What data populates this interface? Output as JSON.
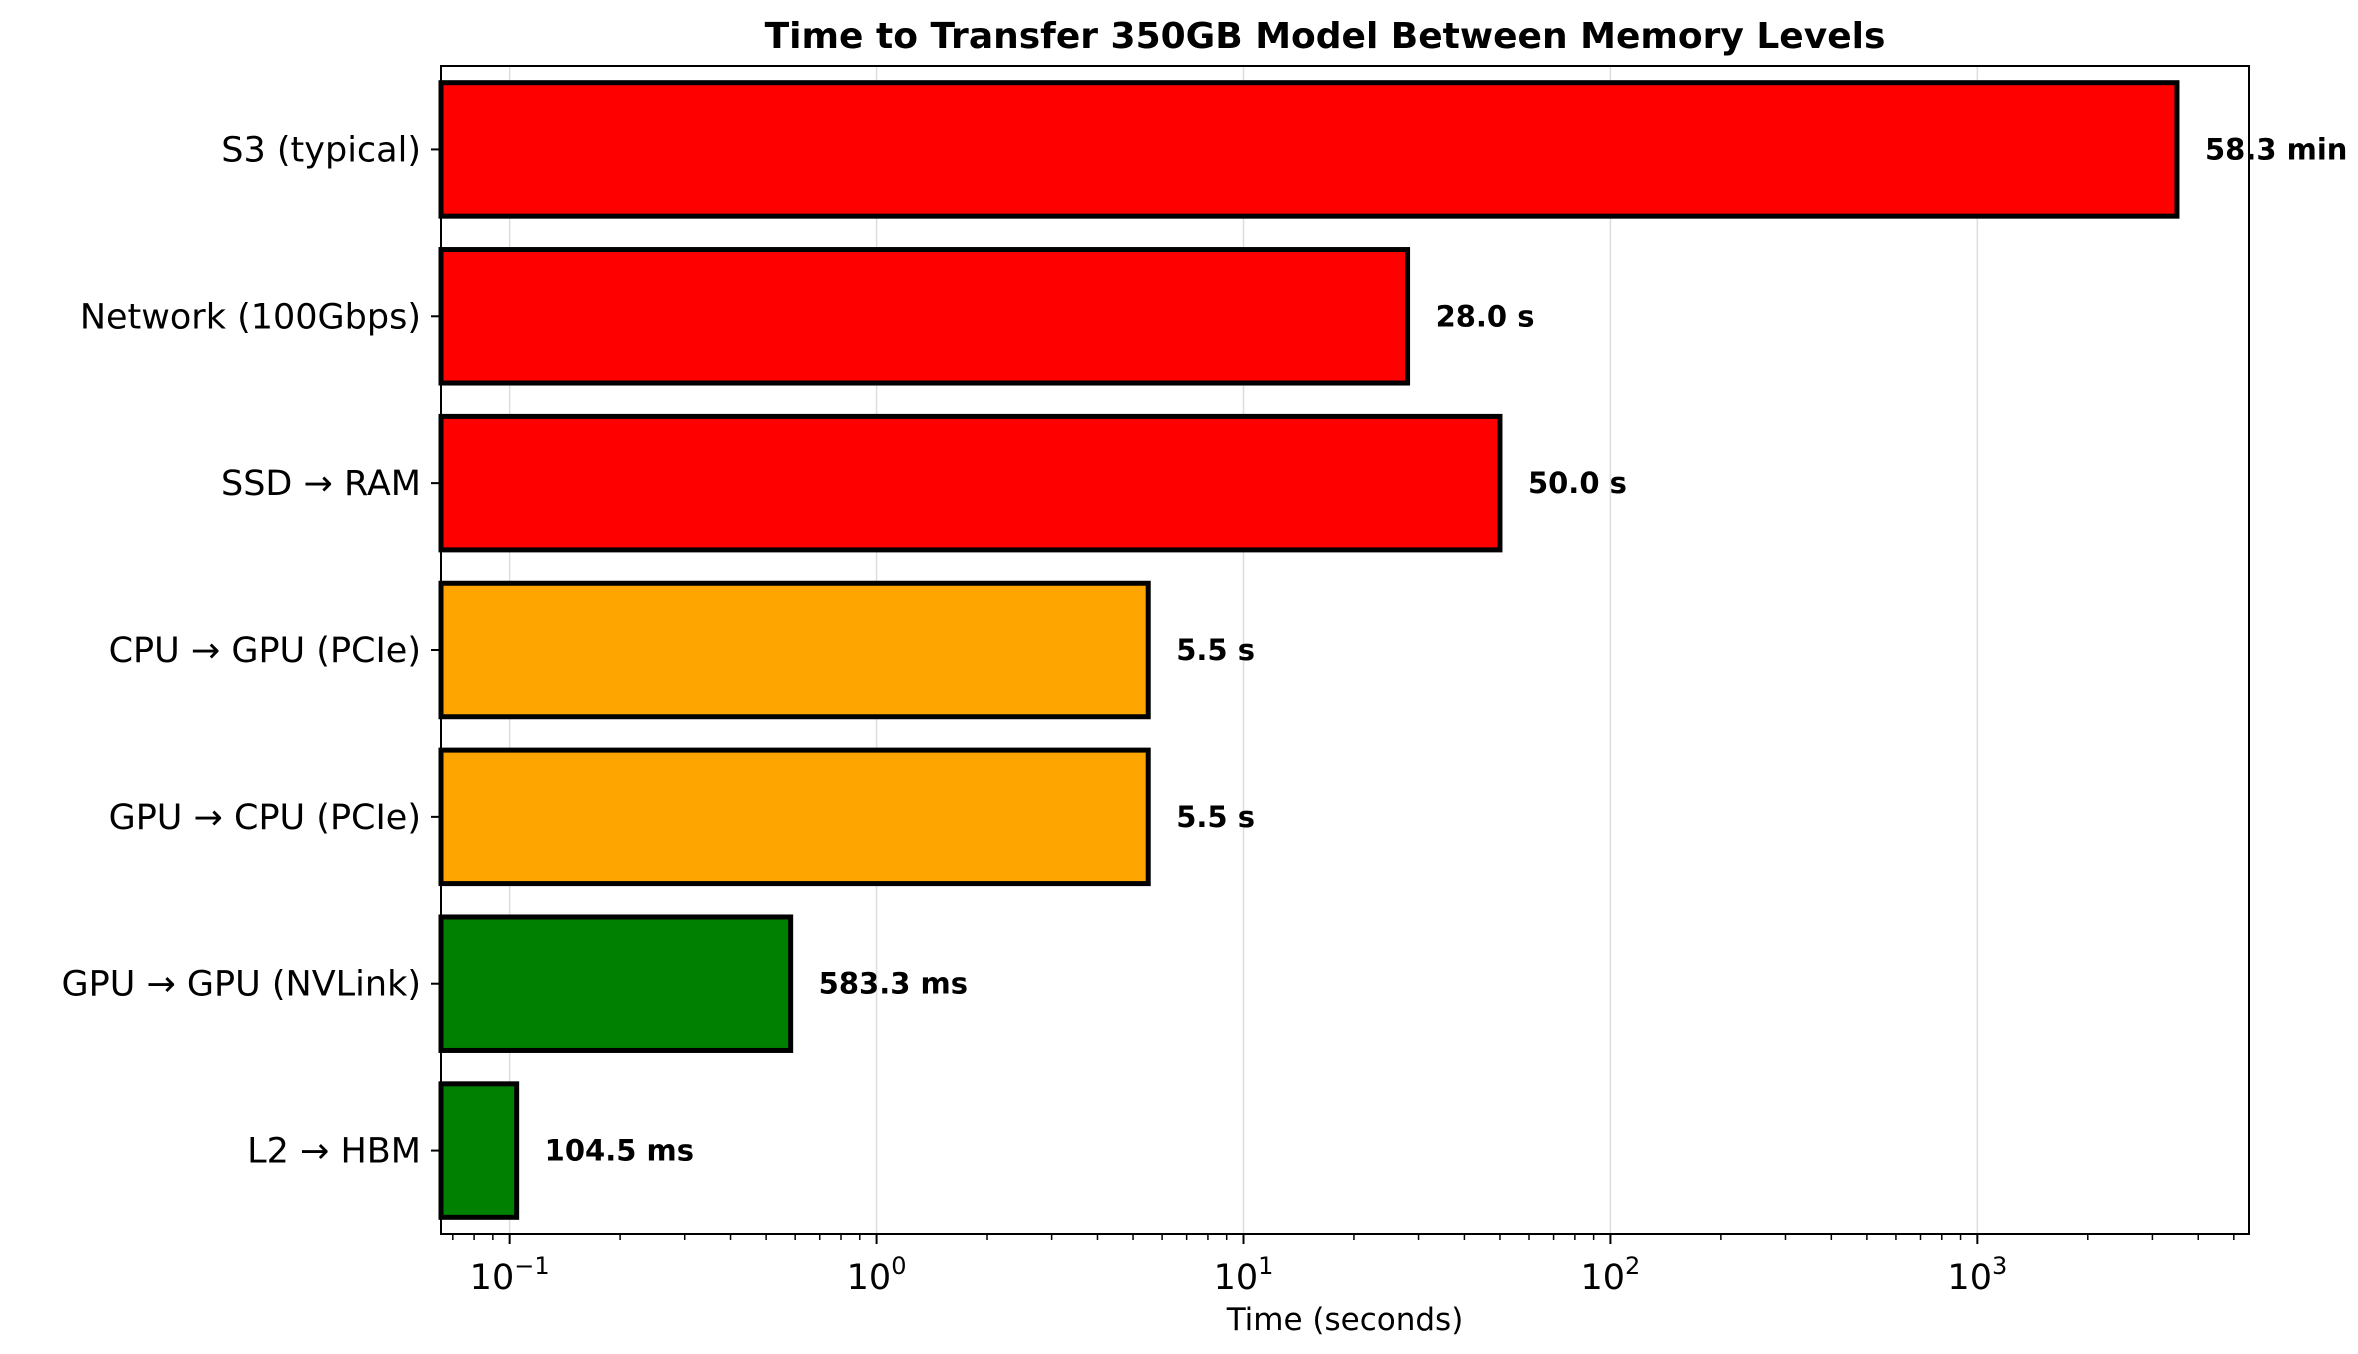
{
  "chart_data": {
    "type": "bar",
    "orientation": "horizontal",
    "title": "Time to Transfer 350GB Model Between Memory Levels",
    "xlabel": "Time (seconds)",
    "ylabel": "",
    "xscale": "log",
    "xlim": [
      0.065,
      5500
    ],
    "xticks": [
      {
        "value": 0.1,
        "base": "10",
        "exp": "−1"
      },
      {
        "value": 1,
        "base": "10",
        "exp": "0"
      },
      {
        "value": 10,
        "base": "10",
        "exp": "1"
      },
      {
        "value": 100,
        "base": "10",
        "exp": "2"
      },
      {
        "value": 1000,
        "base": "10",
        "exp": "3"
      }
    ],
    "grid": "x-major",
    "categories": [
      "S3 (typical)",
      "Network (100Gbps)",
      "SSD → RAM",
      "CPU → GPU (PCIe)",
      "GPU → CPU (PCIe)",
      "GPU → GPU (NVLink)",
      "L2 → HBM"
    ],
    "values": [
      3500,
      28.0,
      50.0,
      5.5,
      5.5,
      0.5833,
      0.1045
    ],
    "value_labels": [
      "58.3 min",
      "28.0 s",
      "50.0 s",
      "5.5 s",
      "5.5 s",
      "583.3 ms",
      "104.5 ms"
    ],
    "colors": [
      "#ff0000",
      "#ff0000",
      "#ff0000",
      "#ffa500",
      "#ffa500",
      "#008000",
      "#008000"
    ]
  }
}
